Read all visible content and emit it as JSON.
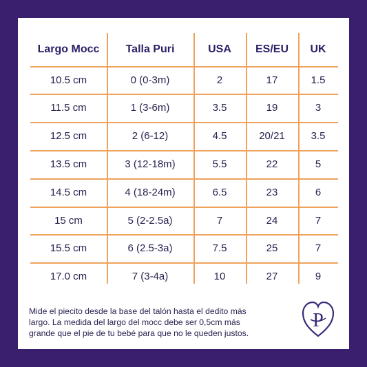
{
  "table": {
    "headers": [
      "Largo Mocc",
      "Talla Puri",
      "USA",
      "ES/EU",
      "UK"
    ],
    "rows": [
      [
        "10.5 cm",
        "0 (0-3m)",
        "2",
        "17",
        "1.5"
      ],
      [
        "11.5 cm",
        "1 (3-6m)",
        "3.5",
        "19",
        "3"
      ],
      [
        "12.5 cm",
        "2 (6-12)",
        "4.5",
        "20/21",
        "3.5"
      ],
      [
        "13.5 cm",
        "3 (12-18m)",
        "5.5",
        "22",
        "5"
      ],
      [
        "14.5 cm",
        "4 (18-24m)",
        "6.5",
        "23",
        "6"
      ],
      [
        "15 cm",
        "5 (2-2.5a)",
        "7",
        "24",
        "7"
      ],
      [
        "15.5 cm",
        "6 (2.5-3a)",
        "7.5",
        "25",
        "7"
      ],
      [
        "17.0 cm",
        "7 (3-4a)",
        "10",
        "27",
        "9"
      ]
    ]
  },
  "note": {
    "line1": "Mide el piecito desde la base del talón hasta el dedito más",
    "line2": "largo. La medida del largo del mocc debe ser 0,5cm más",
    "line3": "grande que el pie de tu bebé para que no le queden justos."
  },
  "logo": {
    "letter": "P",
    "icon": "heart-logo-icon"
  },
  "colors": {
    "background": "#3a1f6e",
    "card": "#ffffff",
    "grid": "#f0a25a",
    "header_text": "#2d1f68",
    "body_text": "#2b2150"
  }
}
